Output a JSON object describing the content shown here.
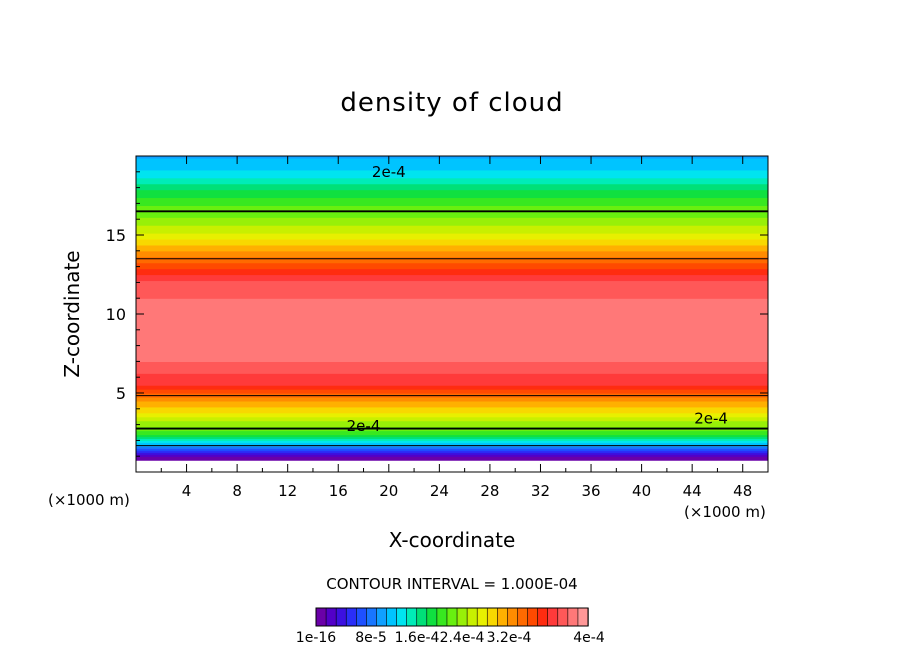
{
  "chart_data": {
    "type": "heatmap",
    "title": "density of cloud",
    "xlabel": "X-coordinate",
    "ylabel": "Z-coordinate",
    "x_unit": "(×1000 m)",
    "x_unit_right": "(×1000 m)",
    "xlim": [
      0,
      50
    ],
    "ylim": [
      0,
      20
    ],
    "xticks": [
      4,
      8,
      12,
      16,
      20,
      24,
      28,
      32,
      36,
      40,
      44,
      48
    ],
    "yticks": [
      5,
      10,
      15
    ],
    "contour_interval": "CONTOUR INTERVAL = 1.000E-04",
    "contour_labels": [
      "2e-4",
      "2e-4",
      "2e-4"
    ],
    "colorbar": {
      "min": 1e-16,
      "max": 0.0004,
      "tick_labels": [
        "1e-16",
        "8e-5",
        "1.6e-4",
        "2.4e-4",
        "3.2e-4",
        "4e-4"
      ],
      "colors": [
        "#6a00a8",
        "#5200c8",
        "#3c10e0",
        "#2a2ef8",
        "#1e50ff",
        "#1876ff",
        "#10a0ff",
        "#00c4ff",
        "#00e4f0",
        "#00ecb8",
        "#00e078",
        "#10e040",
        "#38e820",
        "#68f010",
        "#98f008",
        "#c8f000",
        "#e8f000",
        "#f8d800",
        "#ffb000",
        "#ff8c00",
        "#ff6a00",
        "#ff4a00",
        "#ff2c10",
        "#ff3a3a",
        "#ff5858",
        "#ff7878",
        "#ff9898"
      ]
    },
    "profile_by_height": {
      "z": [
        0.8,
        1.0,
        1.5,
        2.0,
        2.5,
        3.0,
        3.5,
        4.0,
        4.5,
        5.0,
        5.5,
        6.0,
        7.0,
        8.0,
        9.0,
        10.0,
        11.0,
        12.0,
        13.0,
        14.0,
        15.0,
        16.0,
        17.0,
        18.0,
        19.0,
        20.0
      ],
      "value": [
        1e-08,
        2e-05,
        8e-05,
        0.00014,
        0.00019,
        0.00021,
        0.00024,
        0.00026,
        0.00028,
        0.00031,
        0.00034,
        0.00035,
        0.00037,
        0.00038,
        0.00038,
        0.00038,
        0.00037,
        0.00036,
        0.00032,
        0.00028,
        0.00024,
        0.00021,
        0.00019,
        0.00016,
        0.00012,
        0.0001
      ]
    }
  }
}
